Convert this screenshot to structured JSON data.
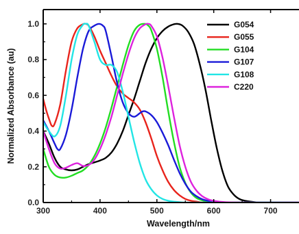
{
  "chart_data": {
    "type": "line",
    "title": "",
    "xlabel": "Wavelength/nm",
    "ylabel": "Normalized Absorbance (au)",
    "xlim": [
      300,
      750
    ],
    "ylim": [
      0,
      1.08
    ],
    "xticks": [
      300,
      400,
      500,
      600,
      700
    ],
    "yticks": [
      0.0,
      0.2,
      0.4,
      0.6,
      0.8,
      1.0
    ],
    "xtick_labels": [
      "300",
      "400",
      "500",
      "600",
      "700"
    ],
    "ytick_labels": [
      "0.0",
      "0.2",
      "0.4",
      "0.6",
      "0.8",
      "1.0"
    ],
    "legend_position": "top-right",
    "series": [
      {
        "name": "G054",
        "color": "#000000",
        "x": [
          300,
          310,
          320,
          330,
          340,
          350,
          360,
          370,
          380,
          390,
          400,
          410,
          420,
          430,
          440,
          450,
          460,
          470,
          480,
          490,
          500,
          510,
          520,
          530,
          537,
          545,
          555,
          565,
          575,
          585,
          595,
          605,
          615,
          625,
          635,
          645,
          655,
          665,
          680,
          700,
          750
        ],
        "y": [
          0.4,
          0.33,
          0.25,
          0.2,
          0.185,
          0.18,
          0.185,
          0.2,
          0.215,
          0.225,
          0.235,
          0.25,
          0.28,
          0.33,
          0.4,
          0.49,
          0.58,
          0.68,
          0.78,
          0.86,
          0.92,
          0.96,
          0.985,
          0.998,
          1.0,
          0.99,
          0.955,
          0.89,
          0.78,
          0.64,
          0.47,
          0.31,
          0.18,
          0.09,
          0.045,
          0.02,
          0.01,
          0.005,
          0.0,
          0.0,
          0.0
        ]
      },
      {
        "name": "G055",
        "color": "#e8241c",
        "x": [
          300,
          305,
          310,
          315,
          320,
          330,
          340,
          350,
          360,
          370,
          375,
          380,
          390,
          400,
          410,
          420,
          430,
          440,
          450,
          460,
          470,
          480,
          490,
          500,
          510,
          520,
          530,
          540,
          550,
          560,
          570,
          580,
          600,
          650,
          750
        ],
        "y": [
          0.58,
          0.52,
          0.47,
          0.43,
          0.44,
          0.55,
          0.74,
          0.9,
          0.975,
          0.998,
          1.0,
          0.99,
          0.93,
          0.85,
          0.78,
          0.71,
          0.65,
          0.61,
          0.585,
          0.56,
          0.52,
          0.45,
          0.36,
          0.26,
          0.18,
          0.115,
          0.07,
          0.04,
          0.02,
          0.01,
          0.005,
          0.0,
          0.0,
          0.0,
          0.0
        ]
      },
      {
        "name": "G104",
        "color": "#22dd22",
        "x": [
          300,
          310,
          320,
          330,
          340,
          350,
          360,
          370,
          380,
          390,
          400,
          410,
          420,
          430,
          440,
          450,
          460,
          470,
          480,
          485,
          490,
          500,
          510,
          520,
          530,
          540,
          550,
          560,
          570,
          580,
          590,
          600,
          650,
          750
        ],
        "y": [
          0.3,
          0.2,
          0.155,
          0.14,
          0.14,
          0.15,
          0.165,
          0.18,
          0.21,
          0.26,
          0.33,
          0.42,
          0.53,
          0.65,
          0.77,
          0.88,
          0.96,
          0.995,
          1.0,
          0.99,
          0.965,
          0.86,
          0.7,
          0.51,
          0.34,
          0.2,
          0.11,
          0.055,
          0.025,
          0.012,
          0.005,
          0.0,
          0.0,
          0.0
        ]
      },
      {
        "name": "G107",
        "color": "#1a1ad8",
        "x": [
          300,
          310,
          320,
          325,
          330,
          340,
          350,
          360,
          370,
          380,
          390,
          398,
          405,
          410,
          420,
          430,
          440,
          450,
          460,
          470,
          475,
          480,
          490,
          500,
          510,
          520,
          530,
          540,
          550,
          560,
          570,
          580,
          590,
          600,
          620,
          650,
          750
        ],
        "y": [
          0.46,
          0.4,
          0.33,
          0.3,
          0.3,
          0.38,
          0.52,
          0.7,
          0.86,
          0.96,
          0.99,
          1.0,
          0.99,
          0.96,
          0.82,
          0.67,
          0.56,
          0.5,
          0.48,
          0.5,
          0.51,
          0.51,
          0.49,
          0.45,
          0.39,
          0.32,
          0.24,
          0.165,
          0.105,
          0.06,
          0.035,
          0.018,
          0.009,
          0.004,
          0.0,
          0.0,
          0.0
        ]
      },
      {
        "name": "G108",
        "color": "#22e5e5",
        "x": [
          300,
          310,
          320,
          330,
          340,
          350,
          360,
          370,
          375,
          380,
          390,
          400,
          410,
          420,
          430,
          440,
          450,
          460,
          470,
          480,
          490,
          500,
          510,
          520,
          530,
          540,
          550,
          570,
          600,
          750
        ],
        "y": [
          0.45,
          0.4,
          0.37,
          0.43,
          0.6,
          0.8,
          0.94,
          0.995,
          1.0,
          0.99,
          0.9,
          0.8,
          0.77,
          0.77,
          0.73,
          0.62,
          0.48,
          0.34,
          0.22,
          0.13,
          0.075,
          0.04,
          0.02,
          0.01,
          0.005,
          0.002,
          0.0,
          0.0,
          0.0,
          0.0
        ]
      },
      {
        "name": "C220",
        "color": "#dd22dd",
        "x": [
          300,
          310,
          320,
          330,
          340,
          350,
          360,
          370,
          380,
          390,
          400,
          410,
          420,
          430,
          440,
          450,
          460,
          470,
          480,
          485,
          490,
          500,
          510,
          520,
          530,
          540,
          550,
          560,
          570,
          580,
          590,
          600,
          620,
          650,
          750
        ],
        "y": [
          0.4,
          0.3,
          0.22,
          0.19,
          0.195,
          0.21,
          0.22,
          0.205,
          0.21,
          0.24,
          0.3,
          0.38,
          0.48,
          0.6,
          0.72,
          0.83,
          0.92,
          0.975,
          0.998,
          1.0,
          0.99,
          0.93,
          0.81,
          0.65,
          0.48,
          0.32,
          0.2,
          0.115,
          0.065,
          0.035,
          0.018,
          0.009,
          0.002,
          0.0,
          0.0
        ]
      }
    ]
  }
}
